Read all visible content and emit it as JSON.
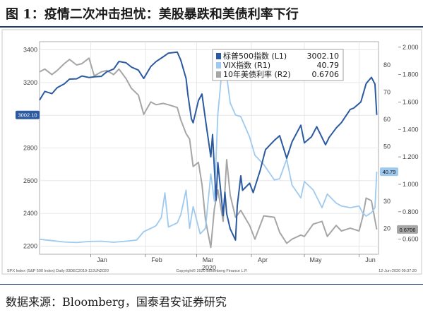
{
  "figure": {
    "title": "图 1：疫情二次冲击担忧：美股暴跌和美债利率下行",
    "source": "数据来源：Bloomberg，国泰君安证券研究"
  },
  "chart_data": {
    "type": "line",
    "year_label": "2020",
    "x_tick_labels": [
      "Jan",
      "Feb",
      "Mar",
      "Apr",
      "May",
      "Jun"
    ],
    "x_ticks": [
      "2020-01-01",
      "2020-02-01",
      "2020-03-01",
      "2020-04-01",
      "2020-05-01",
      "2020-06-01"
    ],
    "x_range": [
      "2019-12-03",
      "2020-06-12"
    ],
    "axes": {
      "L1": {
        "range": [
          2150,
          3450
        ],
        "ticks": [
          2200,
          2400,
          2600,
          2800,
          3000,
          3200,
          3400
        ],
        "format": "int"
      },
      "R1": {
        "range": [
          10.5,
          88.5
        ],
        "ticks": [
          20,
          30,
          40,
          50,
          60,
          70,
          80
        ],
        "format": "int"
      },
      "R2": {
        "range": [
          0.49,
          2.04
        ],
        "ticks": [
          0.6,
          0.8,
          1.0,
          1.2,
          1.4,
          1.6,
          1.8,
          2.0
        ],
        "format": "3dec"
      }
    },
    "legend": {
      "position": "top-right",
      "entries": [
        {
          "name": "标普500指数 (L1)",
          "value": "3002.10"
        },
        {
          "name": "VIX指数 (R1)",
          "value": "40.79"
        },
        {
          "name": "10年美债利率 (R2)",
          "value": "0.6706"
        }
      ]
    },
    "last_value_tags": {
      "L1": "3002.10",
      "R1": "40.79",
      "R2": "0.6706"
    },
    "footer": {
      "left": "SPX Index (S&P 500 Index)  Daily 03DEC2019-12JUN2020",
      "center": "Copyright© 2020 Bloomberg Finance L.P.",
      "right": "12-Jun-2020 09:37:20"
    },
    "series": [
      {
        "name": "标普500指数 (L1)",
        "axis": "L1",
        "color": "#2b5aa0",
        "width": 2,
        "points": [
          [
            "2019-12-03",
            3093
          ],
          [
            "2019-12-06",
            3146
          ],
          [
            "2019-12-10",
            3132
          ],
          [
            "2019-12-13",
            3169
          ],
          [
            "2019-12-17",
            3192
          ],
          [
            "2019-12-20",
            3221
          ],
          [
            "2019-12-24",
            3223
          ],
          [
            "2019-12-27",
            3240
          ],
          [
            "2019-12-31",
            3231
          ],
          [
            "2020-01-03",
            3235
          ],
          [
            "2020-01-07",
            3238
          ],
          [
            "2020-01-10",
            3265
          ],
          [
            "2020-01-14",
            3283
          ],
          [
            "2020-01-17",
            3329
          ],
          [
            "2020-01-21",
            3321
          ],
          [
            "2020-01-24",
            3295
          ],
          [
            "2020-01-28",
            3276
          ],
          [
            "2020-01-31",
            3225
          ],
          [
            "2020-02-04",
            3298
          ],
          [
            "2020-02-07",
            3328
          ],
          [
            "2020-02-11",
            3357
          ],
          [
            "2020-02-14",
            3380
          ],
          [
            "2020-02-19",
            3386
          ],
          [
            "2020-02-21",
            3337
          ],
          [
            "2020-02-24",
            3225
          ],
          [
            "2020-02-25",
            3128
          ],
          [
            "2020-02-27",
            2979
          ],
          [
            "2020-02-28",
            2954
          ],
          [
            "2020-03-02",
            3090
          ],
          [
            "2020-03-04",
            3130
          ],
          [
            "2020-03-06",
            2972
          ],
          [
            "2020-03-09",
            2746
          ],
          [
            "2020-03-10",
            2882
          ],
          [
            "2020-03-12",
            2480
          ],
          [
            "2020-03-13",
            2711
          ],
          [
            "2020-03-16",
            2386
          ],
          [
            "2020-03-17",
            2529
          ],
          [
            "2020-03-18",
            2398
          ],
          [
            "2020-03-20",
            2305
          ],
          [
            "2020-03-23",
            2237
          ],
          [
            "2020-03-24",
            2447
          ],
          [
            "2020-03-26",
            2630
          ],
          [
            "2020-03-27",
            2541
          ],
          [
            "2020-03-31",
            2585
          ],
          [
            "2020-04-02",
            2527
          ],
          [
            "2020-04-06",
            2664
          ],
          [
            "2020-04-09",
            2790
          ],
          [
            "2020-04-14",
            2846
          ],
          [
            "2020-04-17",
            2875
          ],
          [
            "2020-04-21",
            2737
          ],
          [
            "2020-04-24",
            2837
          ],
          [
            "2020-04-29",
            2939
          ],
          [
            "2020-05-01",
            2831
          ],
          [
            "2020-05-05",
            2868
          ],
          [
            "2020-05-08",
            2930
          ],
          [
            "2020-05-13",
            2820
          ],
          [
            "2020-05-15",
            2864
          ],
          [
            "2020-05-19",
            2922
          ],
          [
            "2020-05-22",
            2955
          ],
          [
            "2020-05-27",
            3036
          ],
          [
            "2020-05-29",
            3044
          ],
          [
            "2020-06-02",
            3081
          ],
          [
            "2020-06-05",
            3194
          ],
          [
            "2020-06-08",
            3232
          ],
          [
            "2020-06-10",
            3190
          ],
          [
            "2020-06-11",
            3002.1
          ]
        ]
      },
      {
        "name": "VIX指数 (R1)",
        "axis": "R1",
        "color": "#9fcaf0",
        "width": 1.8,
        "points": [
          [
            "2019-12-03",
            16.0
          ],
          [
            "2019-12-10",
            15.5
          ],
          [
            "2019-12-17",
            15.0
          ],
          [
            "2019-12-24",
            14.8
          ],
          [
            "2019-12-31",
            15.2
          ],
          [
            "2020-01-07",
            15.3
          ],
          [
            "2020-01-14",
            14.9
          ],
          [
            "2020-01-21",
            15.3
          ],
          [
            "2020-01-27",
            15.7
          ],
          [
            "2020-01-31",
            18.8
          ],
          [
            "2020-02-05",
            20.3
          ],
          [
            "2020-02-07",
            21.0
          ],
          [
            "2020-02-10",
            24.0
          ],
          [
            "2020-02-12",
            33.0
          ],
          [
            "2020-02-14",
            20.5
          ],
          [
            "2020-02-19",
            22.0
          ],
          [
            "2020-02-21",
            25.0
          ],
          [
            "2020-02-24",
            34.0
          ],
          [
            "2020-02-26",
            20.0
          ],
          [
            "2020-02-28",
            28.0
          ],
          [
            "2020-03-03",
            18.0
          ],
          [
            "2020-03-06",
            20.0
          ],
          [
            "2020-03-09",
            40.0
          ],
          [
            "2020-03-11",
            30.0
          ],
          [
            "2020-03-13",
            62.0
          ],
          [
            "2020-03-16",
            82.7
          ],
          [
            "2020-03-18",
            76.0
          ],
          [
            "2020-03-20",
            66.0
          ],
          [
            "2020-03-23",
            61.6
          ],
          [
            "2020-03-26",
            61.0
          ],
          [
            "2020-03-31",
            53.5
          ],
          [
            "2020-04-03",
            46.8
          ],
          [
            "2020-04-08",
            43.4
          ],
          [
            "2020-04-14",
            37.8
          ],
          [
            "2020-04-17",
            38.2
          ],
          [
            "2020-04-21",
            45.4
          ],
          [
            "2020-04-24",
            35.9
          ],
          [
            "2020-04-29",
            31.2
          ],
          [
            "2020-05-01",
            37.2
          ],
          [
            "2020-05-06",
            34.1
          ],
          [
            "2020-05-11",
            27.6
          ],
          [
            "2020-05-14",
            32.6
          ],
          [
            "2020-05-19",
            29.3
          ],
          [
            "2020-05-22",
            28.2
          ],
          [
            "2020-05-27",
            27.6
          ],
          [
            "2020-06-01",
            28.2
          ],
          [
            "2020-06-03",
            25.7
          ],
          [
            "2020-06-05",
            24.5
          ],
          [
            "2020-06-08",
            25.8
          ],
          [
            "2020-06-10",
            27.6
          ],
          [
            "2020-06-11",
            40.79
          ]
        ]
      },
      {
        "name": "10年美债利率 (R2)",
        "axis": "R2",
        "color": "#a6a6a6",
        "width": 2,
        "points": [
          [
            "2019-12-03",
            1.82
          ],
          [
            "2019-12-06",
            1.84
          ],
          [
            "2019-12-10",
            1.8
          ],
          [
            "2019-12-13",
            1.83
          ],
          [
            "2019-12-17",
            1.88
          ],
          [
            "2019-12-20",
            1.91
          ],
          [
            "2019-12-24",
            1.87
          ],
          [
            "2019-12-27",
            1.88
          ],
          [
            "2019-12-31",
            1.92
          ],
          [
            "2020-01-03",
            1.79
          ],
          [
            "2020-01-07",
            1.82
          ],
          [
            "2020-01-10",
            1.83
          ],
          [
            "2020-01-14",
            1.8
          ],
          [
            "2020-01-17",
            1.84
          ],
          [
            "2020-01-21",
            1.77
          ],
          [
            "2020-01-24",
            1.7
          ],
          [
            "2020-01-28",
            1.65
          ],
          [
            "2020-01-31",
            1.51
          ],
          [
            "2020-02-04",
            1.6
          ],
          [
            "2020-02-07",
            1.58
          ],
          [
            "2020-02-11",
            1.59
          ],
          [
            "2020-02-14",
            1.58
          ],
          [
            "2020-02-19",
            1.56
          ],
          [
            "2020-02-21",
            1.47
          ],
          [
            "2020-02-24",
            1.37
          ],
          [
            "2020-02-26",
            1.33
          ],
          [
            "2020-02-28",
            1.13
          ],
          [
            "2020-03-02",
            1.16
          ],
          [
            "2020-03-04",
            1.0
          ],
          [
            "2020-03-06",
            0.74
          ],
          [
            "2020-03-09",
            0.54
          ],
          [
            "2020-03-11",
            0.82
          ],
          [
            "2020-03-13",
            0.96
          ],
          [
            "2020-03-16",
            0.73
          ],
          [
            "2020-03-18",
            1.18
          ],
          [
            "2020-03-20",
            0.92
          ],
          [
            "2020-03-23",
            0.76
          ],
          [
            "2020-03-26",
            0.81
          ],
          [
            "2020-03-31",
            0.7
          ],
          [
            "2020-04-03",
            0.6
          ],
          [
            "2020-04-08",
            0.77
          ],
          [
            "2020-04-14",
            0.76
          ],
          [
            "2020-04-17",
            0.65
          ],
          [
            "2020-04-21",
            0.57
          ],
          [
            "2020-04-24",
            0.6
          ],
          [
            "2020-04-29",
            0.63
          ],
          [
            "2020-05-01",
            0.62
          ],
          [
            "2020-05-06",
            0.71
          ],
          [
            "2020-05-11",
            0.73
          ],
          [
            "2020-05-14",
            0.62
          ],
          [
            "2020-05-19",
            0.7
          ],
          [
            "2020-05-22",
            0.66
          ],
          [
            "2020-05-27",
            0.68
          ],
          [
            "2020-06-01",
            0.66
          ],
          [
            "2020-06-03",
            0.76
          ],
          [
            "2020-06-05",
            0.9
          ],
          [
            "2020-06-08",
            0.88
          ],
          [
            "2020-06-10",
            0.74
          ],
          [
            "2020-06-11",
            0.6706
          ]
        ]
      }
    ]
  }
}
